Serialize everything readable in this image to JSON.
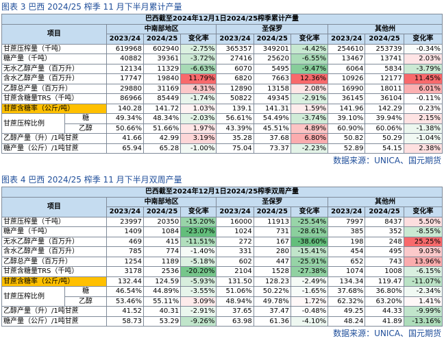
{
  "tables": [
    {
      "title": "图表 3  巴西 2024/25 榨季 11 月下半月累计产量",
      "header": "巴西截至2024年12月1日2024/25榨季累计产量",
      "item_label": "项目",
      "regions": [
        "中南部地区",
        "圣保罗",
        "其他州"
      ],
      "subheaders": [
        "2023/24",
        "2024/25",
        "变化率"
      ],
      "rows": [
        {
          "label": "甘蔗压榨量（千吨）",
          "cells": [
            "619968",
            "602940",
            "-2.75%",
            "365357",
            "349201",
            "-4.42%",
            "254610",
            "253739",
            "-0.34%"
          ]
        },
        {
          "label": "糖产量（千吨）",
          "cells": [
            "40882",
            "39361",
            "-3.72%",
            "27416",
            "25620",
            "-6.55%",
            "13467",
            "13741",
            "2.03%"
          ]
        },
        {
          "label": "无水乙醇产量（百万升）",
          "cells": [
            "12134",
            "11329",
            "-6.63%",
            "6070",
            "5495",
            "-9.47%",
            "6064",
            "5834",
            "-3.79%"
          ]
        },
        {
          "label": "含水乙醇产量（百万升）",
          "cells": [
            "17747",
            "19840",
            "11.79%",
            "6820",
            "7663",
            "12.36%",
            "10926",
            "12177",
            "11.45%"
          ]
        },
        {
          "label": "乙醇总产量（百万升）",
          "cells": [
            "29880",
            "31169",
            "4.31%",
            "12890",
            "13158",
            "2.08%",
            "16990",
            "18011",
            "6.01%"
          ]
        },
        {
          "label": "甘蔗含糖量TRS（千吨）",
          "cells": [
            "86966",
            "85449",
            "-1.74%",
            "50822",
            "49345",
            "-2.91%",
            "36145",
            "36104",
            "-0.11%"
          ]
        },
        {
          "label": "甘蔗含糖率（公斤/吨）",
          "highlight": true,
          "cells": [
            "140.28",
            "141.72",
            "1.03%",
            "139.1",
            "141.31",
            "1.59%",
            "141.96",
            "142.29",
            "0.23%"
          ]
        },
        {
          "group": "甘蔗压榨比例",
          "label": "糖",
          "cells": [
            "49.34%",
            "48.34%",
            "-2.03%",
            "56.61%",
            "54.49%",
            "-3.74%",
            "39.10%",
            "39.94%",
            "2.15%"
          ]
        },
        {
          "label": "乙醇",
          "cells": [
            "50.66%",
            "51.66%",
            "1.97%",
            "43.39%",
            "45.51%",
            "4.89%",
            "60.90%",
            "60.06%",
            "-1.38%"
          ]
        },
        {
          "label": "乙醇产量（升）/1吨甘蔗",
          "cells": [
            "41.66",
            "42.99",
            "3.19%",
            "35.28",
            "37.68",
            "6.80%",
            "50.82",
            "50.29",
            "-1.04%"
          ]
        },
        {
          "label": "糖产量（公斤）/1吨甘蔗",
          "cells": [
            "65.94",
            "65.28",
            "-1.00%",
            "75.04",
            "73.37",
            "-2.23%",
            "52.89",
            "54.15",
            "2.38%"
          ]
        }
      ],
      "source": "数据来源：UNICA、国元期货"
    },
    {
      "title": "图表 4  巴西 2024/25 榨季 11 月下半月双周产量",
      "header": "巴西截至2024年12月1日2024/25榨季双周产量",
      "item_label": "项目",
      "regions": [
        "中南部地区",
        "圣保罗",
        "其他州"
      ],
      "subheaders": [
        "2023/24",
        "2024/25",
        "变化率"
      ],
      "rows": [
        {
          "label": "甘蔗压榨量（千吨）",
          "cells": [
            "23997",
            "20350",
            "-15.20%",
            "16000",
            "11913",
            "-25.54%",
            "7997",
            "8437",
            "5.50%"
          ]
        },
        {
          "label": "糖产量（千吨）",
          "cells": [
            "1409",
            "1084",
            "-23.07%",
            "1024",
            "731",
            "-28.61%",
            "385",
            "352",
            "-8.55%"
          ]
        },
        {
          "label": "无水乙醇产量（百万升）",
          "cells": [
            "469",
            "415",
            "-11.51%",
            "272",
            "167",
            "-38.60%",
            "198",
            "248",
            "25.25%"
          ]
        },
        {
          "label": "含水乙醇产量（百万升）",
          "cells": [
            "785",
            "774",
            "-1.40%",
            "331",
            "280",
            "-15.41%",
            "454",
            "495",
            "9.03%"
          ]
        },
        {
          "label": "乙醇总产量（百万升）",
          "cells": [
            "1254",
            "1189",
            "-5.18%",
            "602",
            "447",
            "-25.91%",
            "652",
            "743",
            "13.96%"
          ]
        },
        {
          "label": "甘蔗含糖量TRS（千吨）",
          "cells": [
            "3178",
            "2536",
            "-20.20%",
            "2104",
            "1528",
            "-27.38%",
            "1074",
            "1008",
            "-6.15%"
          ]
        },
        {
          "label": "甘蔗含糖率（公斤/吨）",
          "highlight": true,
          "cells": [
            "132.44",
            "124.59",
            "-5.93%",
            "131.50",
            "128.23",
            "-2.49%",
            "134.34",
            "119.47",
            "-11.07%"
          ]
        },
        {
          "group": "甘蔗压榨比例",
          "label": "糖",
          "cells": [
            "46.54%",
            "44.89%",
            "-3.55%",
            "51.06%",
            "50.22%",
            "-1.65%",
            "37.68%",
            "36.80%",
            "-2.34%"
          ]
        },
        {
          "label": "乙醇",
          "cells": [
            "53.46%",
            "55.11%",
            "3.09%",
            "48.94%",
            "49.78%",
            "1.72%",
            "62.32%",
            "63.20%",
            "1.41%"
          ]
        },
        {
          "label": "乙醇产量（升）/1吨甘蔗",
          "cells": [
            "41.52",
            "40.31",
            "-2.91%",
            "37.65",
            "37.47",
            "-0.48%",
            "49.25",
            "44.33",
            "-9.99%"
          ]
        },
        {
          "label": "糖产量（公斤）/1吨甘蔗",
          "cells": [
            "58.73",
            "53.29",
            "-9.26%",
            "63.98",
            "61.36",
            "-4.10%",
            "48.24",
            "41.89",
            "-13.16%"
          ]
        }
      ],
      "source": "数据来源：UNICA、国元期货"
    }
  ]
}
